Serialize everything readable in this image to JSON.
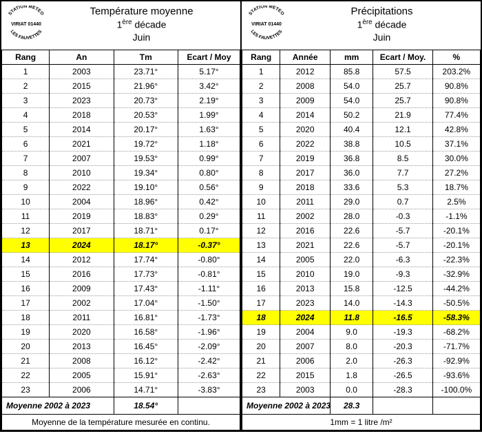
{
  "logo": {
    "top": "STATION METEO",
    "mid": "VIRIAT 01440",
    "bottom": "LES FAUVETTES"
  },
  "left": {
    "title_l1": "Température moyenne",
    "title_l2_pre": "1",
    "title_l2_sup": "ère",
    "title_l2_post": " décade",
    "title_l3": "Juin",
    "headers": [
      "Rang",
      "An",
      "Tm",
      "Ecart / Moy"
    ],
    "highlight_rank": 13,
    "rows": [
      {
        "r": "1",
        "a": "2003",
        "v": "23.71°",
        "e": "5.17°"
      },
      {
        "r": "2",
        "a": "2015",
        "v": "21.96°",
        "e": "3.42°"
      },
      {
        "r": "3",
        "a": "2023",
        "v": "20.73°",
        "e": "2.19°"
      },
      {
        "r": "4",
        "a": "2018",
        "v": "20.53°",
        "e": "1.99°"
      },
      {
        "r": "5",
        "a": "2014",
        "v": "20.17°",
        "e": "1.63°"
      },
      {
        "r": "6",
        "a": "2021",
        "v": "19.72°",
        "e": "1.18°"
      },
      {
        "r": "7",
        "a": "2007",
        "v": "19.53°",
        "e": "0.99°"
      },
      {
        "r": "8",
        "a": "2010",
        "v": "19.34°",
        "e": "0.80°"
      },
      {
        "r": "9",
        "a": "2022",
        "v": "19.10°",
        "e": "0.56°"
      },
      {
        "r": "10",
        "a": "2004",
        "v": "18.96°",
        "e": "0.42°"
      },
      {
        "r": "11",
        "a": "2019",
        "v": "18.83°",
        "e": "0.29°"
      },
      {
        "r": "12",
        "a": "2017",
        "v": "18.71°",
        "e": "0.17°"
      },
      {
        "r": "13",
        "a": "2024",
        "v": "18.17°",
        "e": "-0.37°"
      },
      {
        "r": "14",
        "a": "2012",
        "v": "17.74°",
        "e": "-0.80°"
      },
      {
        "r": "15",
        "a": "2016",
        "v": "17.73°",
        "e": "-0.81°"
      },
      {
        "r": "16",
        "a": "2009",
        "v": "17.43°",
        "e": "-1.11°"
      },
      {
        "r": "17",
        "a": "2002",
        "v": "17.04°",
        "e": "-1.50°"
      },
      {
        "r": "18",
        "a": "2011",
        "v": "16.81°",
        "e": "-1.73°"
      },
      {
        "r": "19",
        "a": "2020",
        "v": "16.58°",
        "e": "-1.96°"
      },
      {
        "r": "20",
        "a": "2013",
        "v": "16.45°",
        "e": "-2.09°"
      },
      {
        "r": "21",
        "a": "2008",
        "v": "16.12°",
        "e": "-2.42°"
      },
      {
        "r": "22",
        "a": "2005",
        "v": "15.91°",
        "e": "-2.63°"
      },
      {
        "r": "23",
        "a": "2006",
        "v": "14.71°",
        "e": "-3.83°"
      }
    ],
    "avg_label": "Moyenne 2002 à 2023",
    "avg_value": "18.54°",
    "footer": "Moyenne de la température mesurée en continu."
  },
  "right": {
    "title_l1": "Précipitations",
    "title_l2_pre": "1",
    "title_l2_sup": "ère",
    "title_l2_post": " décade",
    "title_l3": "Juin",
    "headers": [
      "Rang",
      "Année",
      "mm",
      "Ecart / Moy.",
      "%"
    ],
    "highlight_rank": 18,
    "rows": [
      {
        "r": "1",
        "a": "2012",
        "v": "85.8",
        "e": "57.5",
        "p": "203.2%"
      },
      {
        "r": "2",
        "a": "2008",
        "v": "54.0",
        "e": "25.7",
        "p": "90.8%"
      },
      {
        "r": "3",
        "a": "2009",
        "v": "54.0",
        "e": "25.7",
        "p": "90.8%"
      },
      {
        "r": "4",
        "a": "2014",
        "v": "50.2",
        "e": "21.9",
        "p": "77.4%"
      },
      {
        "r": "5",
        "a": "2020",
        "v": "40.4",
        "e": "12.1",
        "p": "42.8%"
      },
      {
        "r": "6",
        "a": "2022",
        "v": "38.8",
        "e": "10.5",
        "p": "37.1%"
      },
      {
        "r": "7",
        "a": "2019",
        "v": "36.8",
        "e": "8.5",
        "p": "30.0%"
      },
      {
        "r": "8",
        "a": "2017",
        "v": "36.0",
        "e": "7.7",
        "p": "27.2%"
      },
      {
        "r": "9",
        "a": "2018",
        "v": "33.6",
        "e": "5.3",
        "p": "18.7%"
      },
      {
        "r": "10",
        "a": "2011",
        "v": "29.0",
        "e": "0.7",
        "p": "2.5%"
      },
      {
        "r": "11",
        "a": "2002",
        "v": "28.0",
        "e": "-0.3",
        "p": "-1.1%"
      },
      {
        "r": "12",
        "a": "2016",
        "v": "22.6",
        "e": "-5.7",
        "p": "-20.1%"
      },
      {
        "r": "13",
        "a": "2021",
        "v": "22.6",
        "e": "-5.7",
        "p": "-20.1%"
      },
      {
        "r": "14",
        "a": "2005",
        "v": "22.0",
        "e": "-6.3",
        "p": "-22.3%"
      },
      {
        "r": "15",
        "a": "2010",
        "v": "19.0",
        "e": "-9.3",
        "p": "-32.9%"
      },
      {
        "r": "16",
        "a": "2013",
        "v": "15.8",
        "e": "-12.5",
        "p": "-44.2%"
      },
      {
        "r": "17",
        "a": "2023",
        "v": "14.0",
        "e": "-14.3",
        "p": "-50.5%"
      },
      {
        "r": "18",
        "a": "2024",
        "v": "11.8",
        "e": "-16.5",
        "p": "-58.3%"
      },
      {
        "r": "19",
        "a": "2004",
        "v": "9.0",
        "e": "-19.3",
        "p": "-68.2%"
      },
      {
        "r": "20",
        "a": "2007",
        "v": "8.0",
        "e": "-20.3",
        "p": "-71.7%"
      },
      {
        "r": "21",
        "a": "2006",
        "v": "2.0",
        "e": "-26.3",
        "p": "-92.9%"
      },
      {
        "r": "22",
        "a": "2015",
        "v": "1.8",
        "e": "-26.5",
        "p": "-93.6%"
      },
      {
        "r": "23",
        "a": "2003",
        "v": "0.0",
        "e": "-28.3",
        "p": "-100.0%"
      }
    ],
    "avg_label": "Moyenne 2002 à 2023",
    "avg_value": "28.3",
    "footer": "1mm = 1 litre /m²"
  }
}
